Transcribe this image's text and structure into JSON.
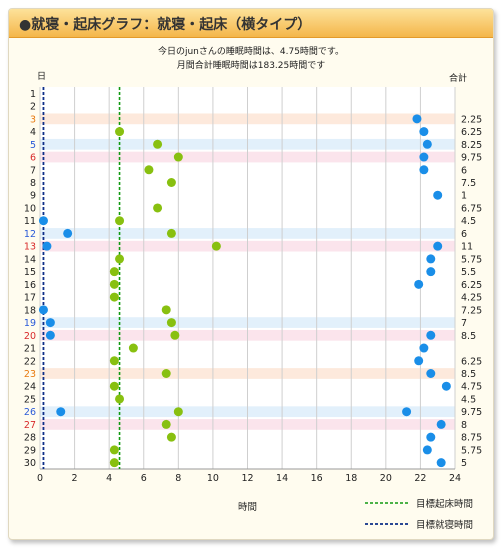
{
  "title": "●就寝・起床グラフ：就寝・起床（横タイプ）",
  "subtitle_line1": "今日のjunさんの睡眠時間は、4.75時間です。",
  "subtitle_line2": "月間合計睡眠時間は183.25時間です",
  "col_day": "日",
  "col_total": "合計",
  "colors": {
    "wake": "#88c010",
    "sleep": "#1a8ee8",
    "wake_line": "#119911",
    "sleep_line": "#0d2e88",
    "sat": "#2a5ad8",
    "sun": "#d82a2a",
    "holiday": "#e87a10",
    "band_blue": "#e2f0fb",
    "band_pink": "#fbe4ec",
    "band_orange": "#fde9dc"
  },
  "legend": {
    "wake_target": "目標起床時間",
    "sleep_target": "目標就寝時間"
  },
  "chart_data": {
    "type": "scatter",
    "xlabel": "時間",
    "xlim": [
      0,
      24
    ],
    "xticks": [
      0,
      2,
      4,
      6,
      8,
      10,
      12,
      14,
      16,
      18,
      20,
      22,
      24
    ],
    "target_wake": 4.6,
    "target_sleep": 0.2,
    "days": [
      {
        "day": "1",
        "total": "",
        "sleep": [],
        "wake": [],
        "type": "weekday"
      },
      {
        "day": "2",
        "total": "",
        "sleep": [],
        "wake": [],
        "type": "weekday"
      },
      {
        "day": "3",
        "total": "2.25",
        "sleep": [
          21.8
        ],
        "wake": [],
        "type": "holiday"
      },
      {
        "day": "4",
        "total": "6.25",
        "sleep": [
          22.2
        ],
        "wake": [
          4.6
        ],
        "type": "weekday"
      },
      {
        "day": "5",
        "total": "8.25",
        "sleep": [
          22.4
        ],
        "wake": [
          6.8
        ],
        "type": "sat"
      },
      {
        "day": "6",
        "total": "9.75",
        "sleep": [
          22.2
        ],
        "wake": [
          8.0
        ],
        "type": "sun"
      },
      {
        "day": "7",
        "total": "6",
        "sleep": [
          22.2
        ],
        "wake": [
          6.3
        ],
        "type": "weekday"
      },
      {
        "day": "8",
        "total": "7.5",
        "sleep": [],
        "wake": [
          7.6
        ],
        "type": "weekday"
      },
      {
        "day": "9",
        "total": "1",
        "sleep": [
          23.0
        ],
        "wake": [],
        "type": "weekday"
      },
      {
        "day": "10",
        "total": "6.75",
        "sleep": [],
        "wake": [
          6.8
        ],
        "type": "weekday"
      },
      {
        "day": "11",
        "total": "4.5",
        "sleep": [
          0.2
        ],
        "wake": [
          4.6
        ],
        "type": "weekday"
      },
      {
        "day": "12",
        "total": "6",
        "sleep": [
          1.6
        ],
        "wake": [
          7.6
        ],
        "type": "sat"
      },
      {
        "day": "13",
        "total": "11",
        "sleep": [
          0.4,
          23.0
        ],
        "wake": [
          10.2
        ],
        "type": "sun"
      },
      {
        "day": "14",
        "total": "5.75",
        "sleep": [
          22.6
        ],
        "wake": [
          4.6
        ],
        "type": "weekday"
      },
      {
        "day": "15",
        "total": "5.5",
        "sleep": [
          22.6
        ],
        "wake": [
          4.3
        ],
        "type": "weekday"
      },
      {
        "day": "16",
        "total": "6.25",
        "sleep": [
          21.9
        ],
        "wake": [
          4.3
        ],
        "type": "weekday"
      },
      {
        "day": "17",
        "total": "4.25",
        "sleep": [],
        "wake": [
          4.3
        ],
        "type": "weekday"
      },
      {
        "day": "18",
        "total": "7.25",
        "sleep": [
          0.2
        ],
        "wake": [
          7.3
        ],
        "type": "weekday"
      },
      {
        "day": "19",
        "total": "7",
        "sleep": [
          0.6
        ],
        "wake": [
          7.6
        ],
        "type": "sat"
      },
      {
        "day": "20",
        "total": "8.5",
        "sleep": [
          0.6,
          22.6
        ],
        "wake": [
          7.8
        ],
        "type": "sun"
      },
      {
        "day": "21",
        "total": "",
        "sleep": [
          22.2
        ],
        "wake": [
          5.4
        ],
        "type": "weekday"
      },
      {
        "day": "22",
        "total": "6.25",
        "sleep": [
          21.9
        ],
        "wake": [
          4.3
        ],
        "type": "weekday"
      },
      {
        "day": "23",
        "total": "8.5",
        "sleep": [
          22.6
        ],
        "wake": [
          7.3
        ],
        "type": "holiday"
      },
      {
        "day": "24",
        "total": "4.75",
        "sleep": [
          23.5
        ],
        "wake": [
          4.3
        ],
        "type": "weekday"
      },
      {
        "day": "25",
        "total": "4.5",
        "sleep": [],
        "wake": [
          4.6
        ],
        "type": "weekday"
      },
      {
        "day": "26",
        "total": "9.75",
        "sleep": [
          1.2,
          21.2
        ],
        "wake": [
          8.0
        ],
        "type": "sat"
      },
      {
        "day": "27",
        "total": "8",
        "sleep": [
          23.2
        ],
        "wake": [
          7.3
        ],
        "type": "sun"
      },
      {
        "day": "28",
        "total": "8.75",
        "sleep": [
          22.6
        ],
        "wake": [
          7.6
        ],
        "type": "weekday"
      },
      {
        "day": "29",
        "total": "5.75",
        "sleep": [
          22.4
        ],
        "wake": [
          4.3
        ],
        "type": "weekday"
      },
      {
        "day": "30",
        "total": "5",
        "sleep": [
          23.2
        ],
        "wake": [
          4.3
        ],
        "type": "weekday"
      }
    ]
  }
}
